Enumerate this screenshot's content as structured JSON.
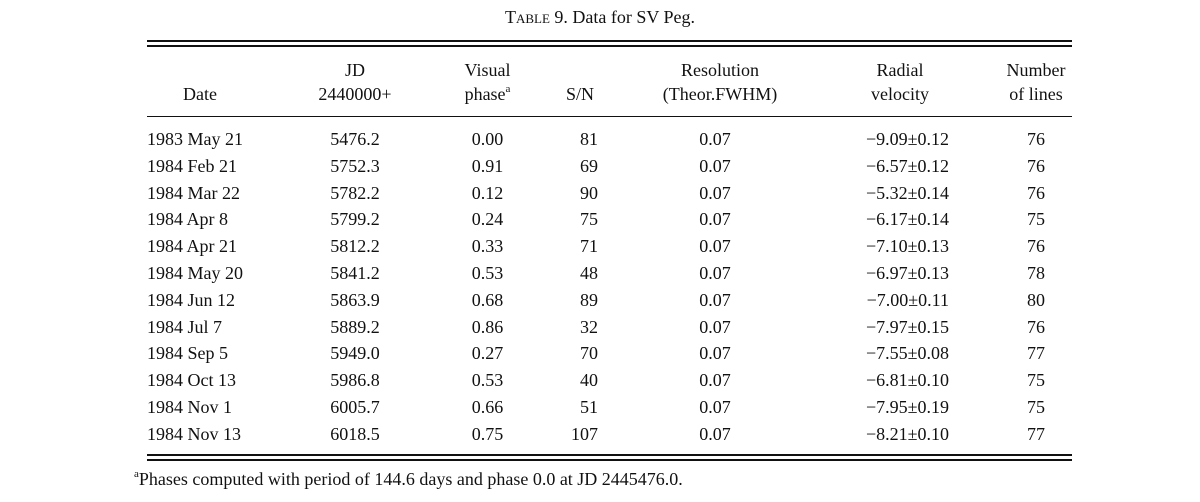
{
  "caption": {
    "label": "Table 9.",
    "title": "Data for SV Peg."
  },
  "headers": {
    "date": "Date",
    "jd_line1": "JD",
    "jd_line2": "2440000+",
    "phase_line1": "Visual",
    "phase_line2": "phase",
    "phase_mark": "a",
    "sn": "S/N",
    "res_line1": "Resolution",
    "res_line2": "(Theor.FWHM)",
    "rv_line1": "Radial",
    "rv_line2": "velocity",
    "nl_line1": "Number",
    "nl_line2": "of lines"
  },
  "rows": [
    {
      "date": "1983 May 21",
      "jd": "5476.2",
      "phase": "0.00",
      "sn": "81",
      "res": "0.07",
      "rv": "−9.09±0.12",
      "nl": "76"
    },
    {
      "date": "1984 Feb 21",
      "jd": "5752.3",
      "phase": "0.91",
      "sn": "69",
      "res": "0.07",
      "rv": "−6.57±0.12",
      "nl": "76"
    },
    {
      "date": "1984 Mar 22",
      "jd": "5782.2",
      "phase": "0.12",
      "sn": "90",
      "res": "0.07",
      "rv": "−5.32±0.14",
      "nl": "76"
    },
    {
      "date": "1984 Apr 8",
      "jd": "5799.2",
      "phase": "0.24",
      "sn": "75",
      "res": "0.07",
      "rv": "−6.17±0.14",
      "nl": "75"
    },
    {
      "date": "1984 Apr 21",
      "jd": "5812.2",
      "phase": "0.33",
      "sn": "71",
      "res": "0.07",
      "rv": "−7.10±0.13",
      "nl": "76"
    },
    {
      "date": "1984 May 20",
      "jd": "5841.2",
      "phase": "0.53",
      "sn": "48",
      "res": "0.07",
      "rv": "−6.97±0.13",
      "nl": "78"
    },
    {
      "date": "1984 Jun 12",
      "jd": "5863.9",
      "phase": "0.68",
      "sn": "89",
      "res": "0.07",
      "rv": "−7.00±0.11",
      "nl": "80"
    },
    {
      "date": "1984 Jul 7",
      "jd": "5889.2",
      "phase": "0.86",
      "sn": "32",
      "res": "0.07",
      "rv": "−7.97±0.15",
      "nl": "76"
    },
    {
      "date": "1984 Sep 5",
      "jd": "5949.0",
      "phase": "0.27",
      "sn": "70",
      "res": "0.07",
      "rv": "−7.55±0.08",
      "nl": "77"
    },
    {
      "date": "1984 Oct 13",
      "jd": "5986.8",
      "phase": "0.53",
      "sn": "40",
      "res": "0.07",
      "rv": "−6.81±0.10",
      "nl": "75"
    },
    {
      "date": "1984 Nov 1",
      "jd": "6005.7",
      "phase": "0.66",
      "sn": "51",
      "res": "0.07",
      "rv": "−7.95±0.19",
      "nl": "75"
    },
    {
      "date": "1984 Nov 13",
      "jd": "6018.5",
      "phase": "0.75",
      "sn": "107",
      "res": "0.07",
      "rv": "−8.21±0.10",
      "nl": "77"
    }
  ],
  "footnote": {
    "mark": "a",
    "text": "Phases computed with period of 144.6 days and phase 0.0 at JD 2445476.0."
  }
}
